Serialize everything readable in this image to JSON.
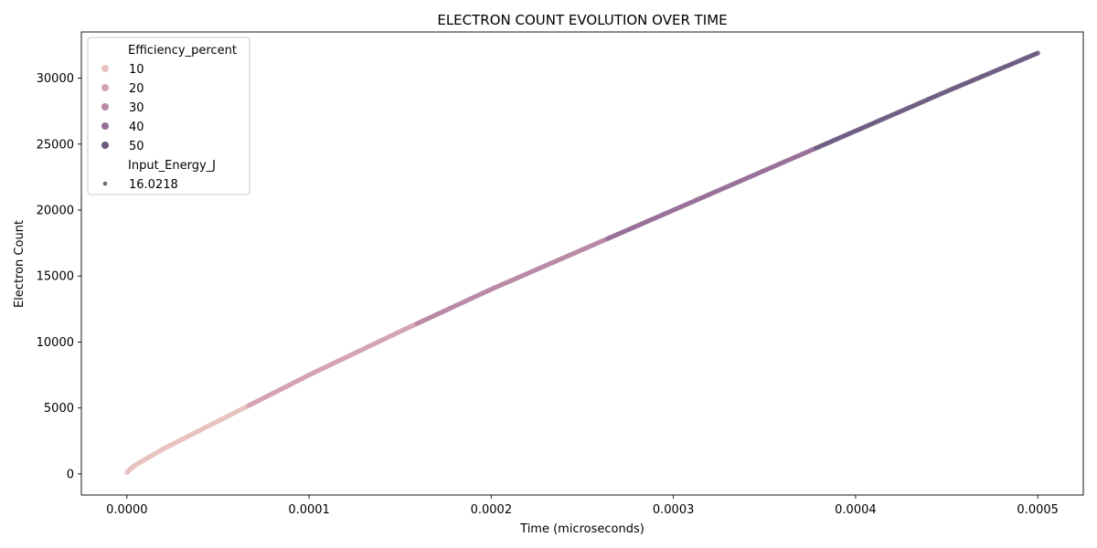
{
  "chart_data": {
    "type": "scatter",
    "title": "ELECTRON COUNT EVOLUTION OVER TIME",
    "xlabel": "Time (microseconds)",
    "ylabel": "Electron Count",
    "xlim": [
      -2.5e-05,
      0.000525
    ],
    "ylim": [
      -1600,
      33500
    ],
    "x_ticks": [
      0.0,
      0.0001,
      0.0002,
      0.0003,
      0.0004,
      0.0005
    ],
    "x_tick_labels": [
      "0.0000",
      "0.0001",
      "0.0002",
      "0.0003",
      "0.0004",
      "0.0005"
    ],
    "y_ticks": [
      0,
      5000,
      10000,
      15000,
      20000,
      25000,
      30000
    ],
    "y_tick_labels": [
      "0",
      "5000",
      "10000",
      "15000",
      "20000",
      "25000",
      "30000"
    ],
    "grid": false,
    "legend": {
      "position": "top-left",
      "hue_title": "Efficiency_percent",
      "hue_entries": [
        {
          "label": "10",
          "color": "#e8c3c0"
        },
        {
          "label": "20",
          "color": "#d3a3b1"
        },
        {
          "label": "30",
          "color": "#b888a6"
        },
        {
          "label": "40",
          "color": "#966f96"
        },
        {
          "label": "50",
          "color": "#6d5a80"
        }
      ],
      "size_title": "Input_Energy_J",
      "size_entries": [
        {
          "label": "16.0218",
          "color": "#6b6b6b"
        }
      ]
    },
    "series": [
      {
        "efficiency_percent_range": [
          1,
          50
        ],
        "input_energy_j": 16.0218,
        "x": [
          0.0,
          2e-06,
          5e-06,
          1e-05,
          1.5e-05,
          2e-05,
          3e-05,
          5e-05,
          7e-05,
          0.0001,
          0.00015,
          0.0002,
          0.00025,
          0.0003,
          0.00035,
          0.0004,
          0.00045,
          0.0005
        ],
        "y": [
          100,
          400,
          700,
          1100,
          1500,
          1900,
          2600,
          4000,
          5400,
          7500,
          10800,
          14000,
          17000,
          20000,
          23000,
          26000,
          29000,
          31900
        ]
      }
    ]
  }
}
